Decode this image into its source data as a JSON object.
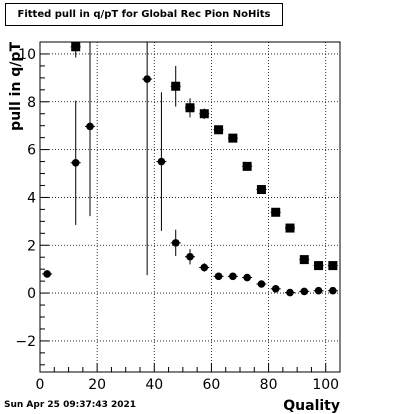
{
  "title": "Fitted pull in q/pT for Global Rec Pion NoHits",
  "footer": "Sun Apr 25 09:37:43 2021",
  "chart_data": {
    "type": "scatter",
    "title": "Fitted pull in q/pT for Global Rec Pion NoHits",
    "xlabel": "Quality",
    "ylabel": "pull in q/pT",
    "xlim": [
      0,
      105
    ],
    "ylim": [
      -3.3,
      10.5
    ],
    "xticks": [
      0,
      20,
      40,
      60,
      80,
      100
    ],
    "xtick_labels": [
      "0",
      "20",
      "40",
      "60",
      "80",
      "100"
    ],
    "yticks": [
      -2,
      0,
      2,
      4,
      6,
      8,
      10
    ],
    "ytick_labels": [
      "−2",
      "0",
      "2",
      "4",
      "6",
      "8",
      "10"
    ],
    "grid": true,
    "series": [
      {
        "marker": "circle",
        "x": [
          2.5,
          12.5,
          17.5,
          37.5,
          42.5,
          47.5,
          52.5,
          57.5,
          62.5,
          67.5,
          72.5,
          77.5,
          82.5,
          87.5,
          92.5,
          97.5,
          102.5
        ],
        "y": [
          0.8,
          5.45,
          6.97,
          8.95,
          5.5,
          2.1,
          1.52,
          1.07,
          0.7,
          0.7,
          0.65,
          0.38,
          0.18,
          0.02,
          0.07,
          0.1,
          0.1
        ],
        "yerr": [
          0.12,
          2.6,
          3.75,
          8.2,
          2.9,
          0.55,
          0.32,
          0.18,
          0.12,
          0.1,
          0.08,
          0.08,
          0.07,
          0.06,
          0.06,
          0.06,
          0.06
        ]
      },
      {
        "marker": "square",
        "x": [
          12.5,
          47.5,
          52.5,
          57.5,
          62.5,
          67.5,
          72.5,
          77.5,
          82.5,
          87.5,
          92.5,
          97.5,
          102.5
        ],
        "y": [
          10.3,
          8.65,
          7.75,
          7.5,
          6.83,
          6.48,
          5.3,
          4.33,
          3.38,
          2.72,
          1.4,
          1.15,
          1.15
        ],
        "yerr": [
          0.45,
          0.85,
          0.4,
          0.22,
          0.18,
          0.12,
          0.1,
          0.1,
          0.08,
          0.08,
          0.08,
          0.08,
          0.08
        ]
      }
    ]
  }
}
